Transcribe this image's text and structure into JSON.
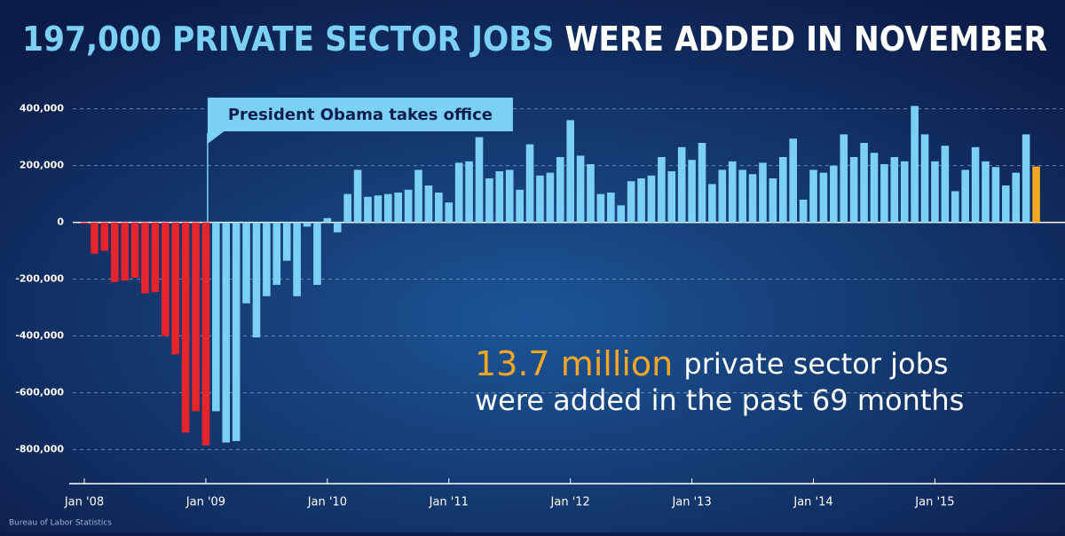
{
  "chart_data": {
    "type": "bar",
    "title": "197,000 PRIVATE SECTOR JOBS",
    "title_rest": "WERE ADDED IN NOVEMBER",
    "categories": [
      "Jan '08",
      null,
      null,
      null,
      null,
      null,
      null,
      null,
      null,
      null,
      null,
      null,
      "Jan '09",
      null,
      null,
      null,
      null,
      null,
      null,
      null,
      null,
      null,
      null,
      null,
      "Jan '10",
      null,
      null,
      null,
      null,
      null,
      null,
      null,
      null,
      null,
      null,
      null,
      "Jan '11",
      null,
      null,
      null,
      null,
      null,
      null,
      null,
      null,
      null,
      null,
      null,
      "Jan '12",
      null,
      null,
      null,
      null,
      null,
      null,
      null,
      null,
      null,
      null,
      null,
      "Jan '13",
      null,
      null,
      null,
      null,
      null,
      null,
      null,
      null,
      null,
      null,
      null,
      "Jan '14",
      null,
      null,
      null,
      null,
      null,
      null,
      null,
      null,
      null,
      null,
      null,
      "Jan '15",
      null,
      null,
      null,
      null,
      null,
      null,
      null,
      null,
      null,
      null
    ],
    "values": [
      -5000,
      -110000,
      -100000,
      -210000,
      -205000,
      -195000,
      -250000,
      -245000,
      -400000,
      -465000,
      -740000,
      -665000,
      -785000,
      -665000,
      -775000,
      -770000,
      -285000,
      -405000,
      -260000,
      -220000,
      -135000,
      -260000,
      -15000,
      -220000,
      15000,
      -35000,
      100000,
      185000,
      90000,
      95000,
      100000,
      105000,
      115000,
      185000,
      130000,
      105000,
      70000,
      210000,
      215000,
      300000,
      155000,
      180000,
      185000,
      115000,
      275000,
      165000,
      175000,
      230000,
      360000,
      235000,
      205000,
      100000,
      105000,
      60000,
      145000,
      155000,
      165000,
      230000,
      180000,
      265000,
      220000,
      280000,
      135000,
      185000,
      215000,
      185000,
      170000,
      210000,
      155000,
      230000,
      295000,
      80000,
      185000,
      175000,
      200000,
      310000,
      230000,
      280000,
      245000,
      205000,
      230000,
      215000,
      410000,
      310000,
      215000,
      270000,
      110000,
      185000,
      265000,
      215000,
      195000,
      130000,
      175000,
      310000,
      197000
    ],
    "colors": [
      "#e5242b",
      "#e5242b",
      "#e5242b",
      "#e5242b",
      "#e5242b",
      "#e5242b",
      "#e5242b",
      "#e5242b",
      "#e5242b",
      "#e5242b",
      "#e5242b",
      "#e5242b",
      "#e5242b",
      "#7ccff5",
      "#7ccff5",
      "#7ccff5",
      "#7ccff5",
      "#7ccff5",
      "#7ccff5",
      "#7ccff5",
      "#7ccff5",
      "#7ccff5",
      "#7ccff5",
      "#7ccff5",
      "#7ccff5",
      "#7ccff5",
      "#7ccff5",
      "#7ccff5",
      "#7ccff5",
      "#7ccff5",
      "#7ccff5",
      "#7ccff5",
      "#7ccff5",
      "#7ccff5",
      "#7ccff5",
      "#7ccff5",
      "#7ccff5",
      "#7ccff5",
      "#7ccff5",
      "#7ccff5",
      "#7ccff5",
      "#7ccff5",
      "#7ccff5",
      "#7ccff5",
      "#7ccff5",
      "#7ccff5",
      "#7ccff5",
      "#7ccff5",
      "#7ccff5",
      "#7ccff5",
      "#7ccff5",
      "#7ccff5",
      "#7ccff5",
      "#7ccff5",
      "#7ccff5",
      "#7ccff5",
      "#7ccff5",
      "#7ccff5",
      "#7ccff5",
      "#7ccff5",
      "#7ccff5",
      "#7ccff5",
      "#7ccff5",
      "#7ccff5",
      "#7ccff5",
      "#7ccff5",
      "#7ccff5",
      "#7ccff5",
      "#7ccff5",
      "#7ccff5",
      "#7ccff5",
      "#7ccff5",
      "#7ccff5",
      "#7ccff5",
      "#7ccff5",
      "#7ccff5",
      "#7ccff5",
      "#7ccff5",
      "#7ccff5",
      "#7ccff5",
      "#7ccff5",
      "#7ccff5",
      "#7ccff5",
      "#7ccff5",
      "#7ccff5",
      "#7ccff5",
      "#7ccff5",
      "#7ccff5",
      "#7ccff5",
      "#7ccff5",
      "#7ccff5",
      "#7ccff5",
      "#7ccff5",
      "#7ccff5",
      "#f5a623"
    ],
    "ylim": [
      -920000,
      480000
    ],
    "yticks": [
      {
        "value": 400000,
        "label": "400,000"
      },
      {
        "value": 200000,
        "label": "200,000"
      },
      0,
      {
        "value": -200000,
        "label": "-200,000"
      },
      {
        "value": -400000,
        "label": "-400,000"
      },
      {
        "value": -600000,
        "label": "-600,000"
      },
      {
        "value": -800000,
        "label": "-800,000"
      }
    ],
    "grid": true,
    "annotation": {
      "text": "President Obama takes office",
      "category": "Jan '09"
    },
    "callout": {
      "highlight": "13.7 million",
      "line1": "private sector jobs",
      "line2": "were added in the past 69 months"
    },
    "source": "Bureau of Labor Statistics"
  }
}
